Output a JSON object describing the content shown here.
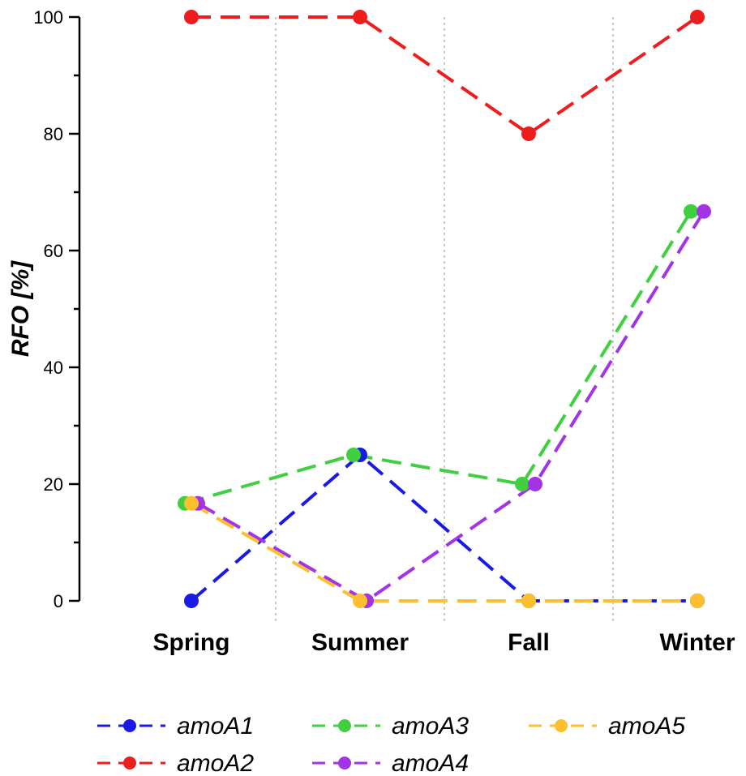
{
  "chart_data": {
    "type": "line",
    "title": "",
    "xlabel": "",
    "ylabel": "RFO [%]",
    "categories": [
      "Spring",
      "Summer",
      "Fall",
      "Winter"
    ],
    "ylim": [
      0,
      100
    ],
    "yticks": [
      0,
      20,
      40,
      60,
      80,
      100
    ],
    "grid": "vertical dotted separators between categories",
    "legend_position": "bottom",
    "series": [
      {
        "name": "amoA1",
        "color": "#1a1ae6",
        "values": [
          0,
          25,
          0,
          0
        ]
      },
      {
        "name": "amoA2",
        "color": "#ee1c1c",
        "values": [
          100,
          100,
          80,
          100
        ]
      },
      {
        "name": "amoA3",
        "color": "#3fcf3f",
        "values": [
          16.7,
          25,
          20,
          66.7
        ]
      },
      {
        "name": "amoA4",
        "color": "#a334e6",
        "values": [
          16.7,
          0,
          20,
          66.7
        ]
      },
      {
        "name": "amoA5",
        "color": "#fdbf2d",
        "values": [
          16.7,
          0,
          0,
          0
        ]
      }
    ]
  }
}
